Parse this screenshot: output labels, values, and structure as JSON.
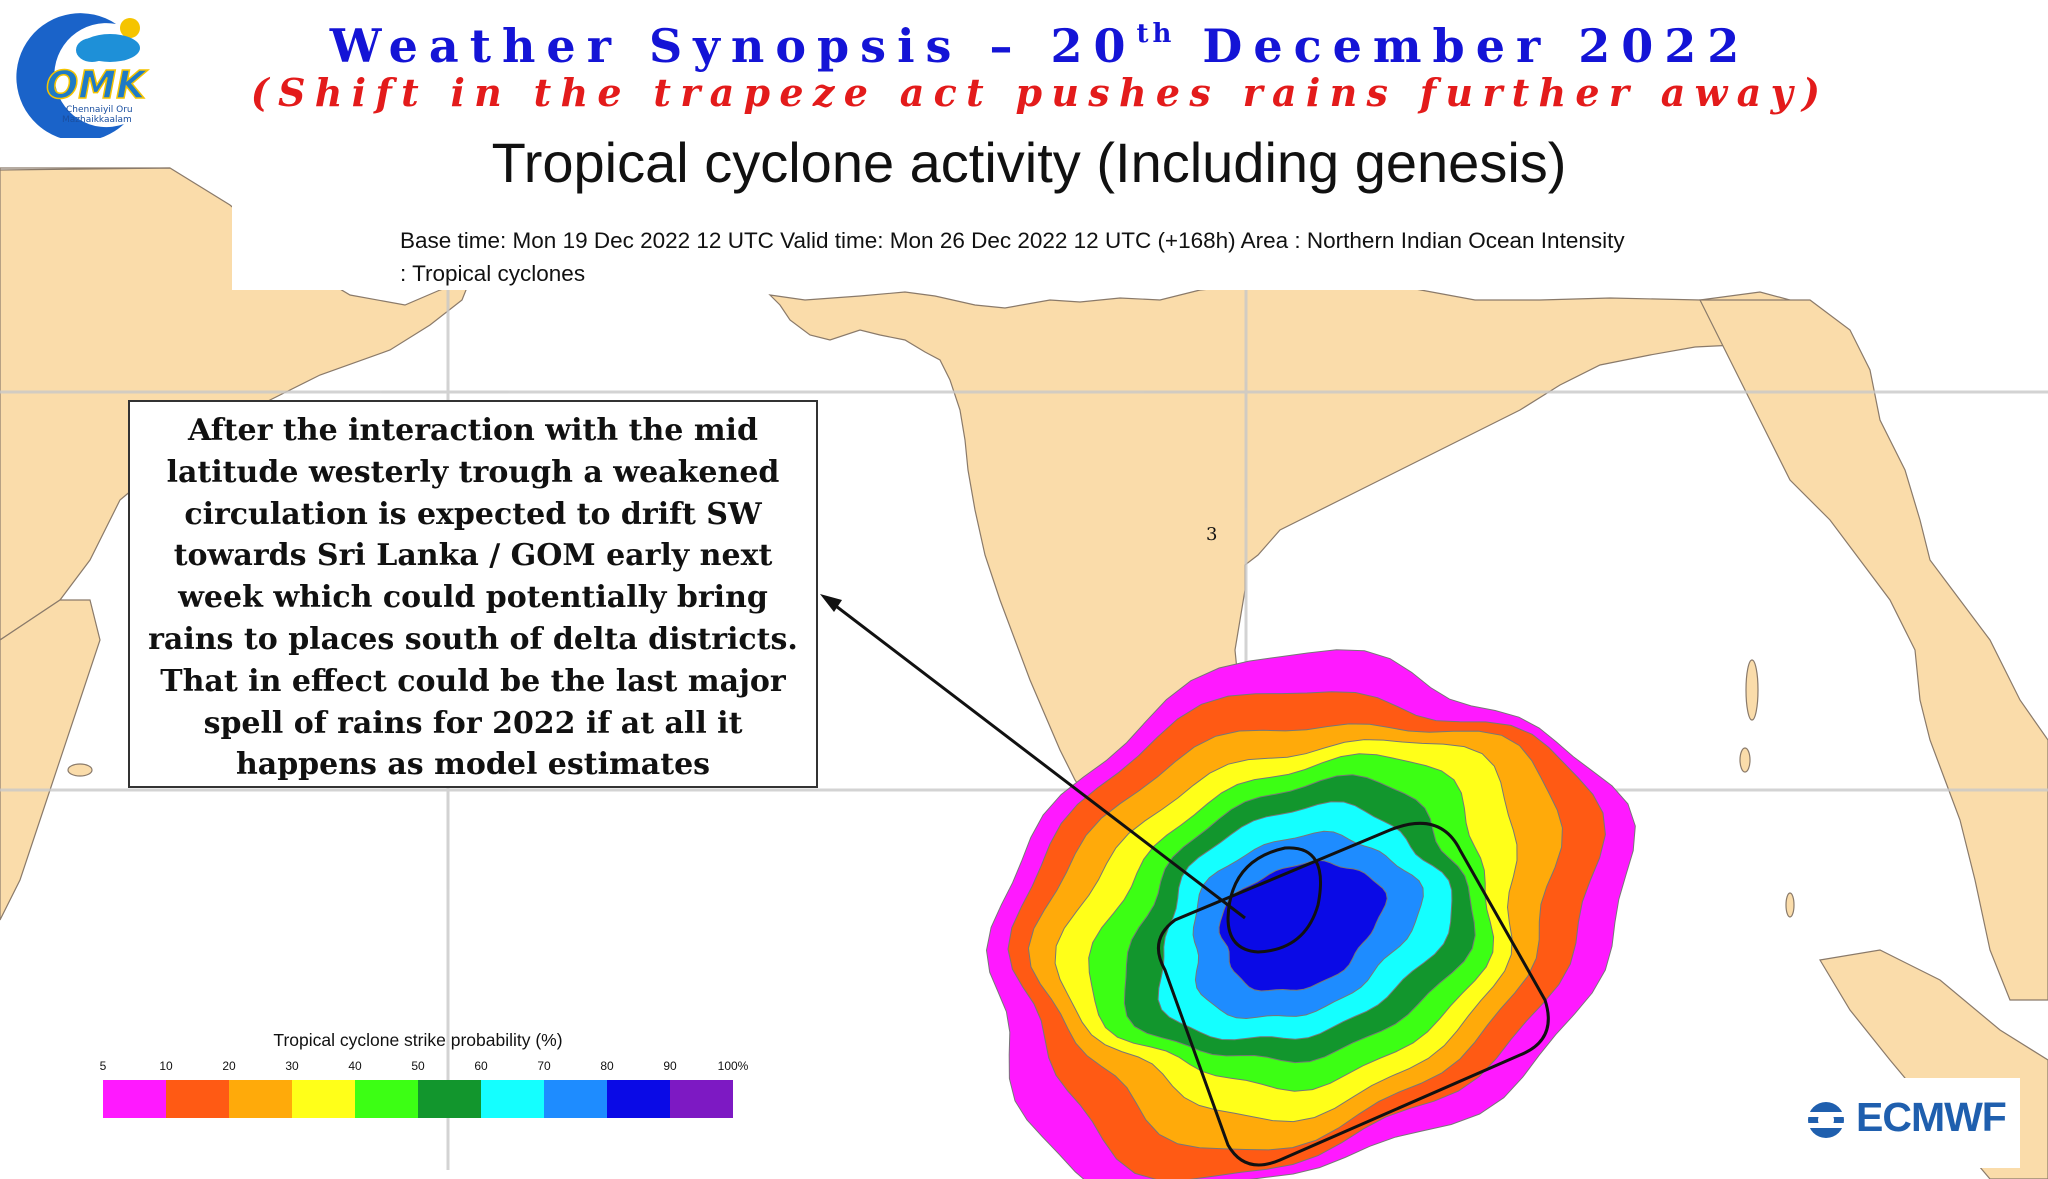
{
  "header": {
    "title_before": "Weather Synopsis – 20",
    "title_sup": "th",
    "title_after": " December 2022",
    "subtitle": "(Shift in the trapeze act pushes rains further away)"
  },
  "logo": {
    "text": "OMK",
    "caption_line1": "Chennaiyil Oru",
    "caption_line2": "Mazhaikkaalam"
  },
  "product": {
    "title": "Tropical cyclone activity (Including genesis)",
    "meta_line1": "Base time: Mon 19 Dec 2022 12 UTC Valid time: Mon 26 Dec 2022 12 UTC (+168h) Area : Northern Indian Ocean Intensity",
    "meta_line2": ": Tropical cyclones"
  },
  "callout": {
    "text": "After the interaction with the mid latitude westerly trough a weakened circulation is expected to drift SW towards Sri Lanka / GOM early next week which could potentially bring rains to places south of delta districts. That in effect could be the last major spell of rains for 2022 if at all it happens as model estimates"
  },
  "map_labels": {
    "island_number": "3"
  },
  "legend": {
    "title": "Tropical cyclone strike probability (%)",
    "ticks": [
      "5",
      "10",
      "20",
      "30",
      "40",
      "50",
      "60",
      "70",
      "80",
      "90",
      "100%"
    ],
    "colors": [
      "#ff19ff",
      "#ff5a14",
      "#ffaa0a",
      "#ffff19",
      "#3cff14",
      "#12962d",
      "#14ffff",
      "#1e8cff",
      "#0a0ae6",
      "#7d19c3"
    ]
  },
  "brand": {
    "name": "ECMWF",
    "color": "#1f5fae"
  },
  "colors": {
    "land": "#fadcaa",
    "ocean": "#ffffff",
    "title_blue": "#1414d6",
    "subtitle_red": "#e31b1b"
  }
}
